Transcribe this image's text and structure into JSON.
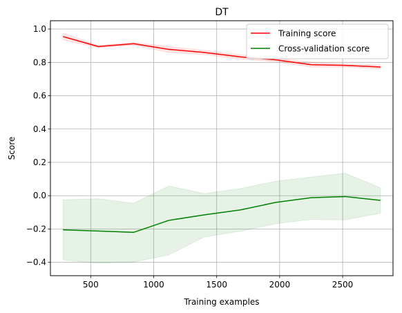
{
  "chart_data": {
    "type": "line",
    "title": "DT",
    "xlabel": "Training examples",
    "ylabel": "Score",
    "xlim": [
      180,
      2900
    ],
    "ylim": [
      -0.48,
      1.05
    ],
    "xticks": [
      500,
      1000,
      1500,
      2000,
      2500
    ],
    "yticks": [
      -0.4,
      -0.2,
      0.0,
      0.2,
      0.4,
      0.6,
      0.8,
      1.0
    ],
    "xtick_labels": [
      "500",
      "1000",
      "1500",
      "2000",
      "2500"
    ],
    "ytick_labels": [
      "−0.4",
      "−0.2",
      "0.0",
      "0.2",
      "0.4",
      "0.6",
      "0.8",
      "1.0"
    ],
    "grid": true,
    "legend_position": "top-right",
    "x": [
      280,
      560,
      840,
      1120,
      1400,
      1690,
      1970,
      2250,
      2520,
      2800
    ],
    "series": [
      {
        "name": "Training score",
        "color": "#ff0000",
        "band_color": "#ff0000",
        "values": [
          0.955,
          0.895,
          0.912,
          0.878,
          0.86,
          0.833,
          0.815,
          0.786,
          0.782,
          0.772
        ],
        "upper": [
          0.975,
          0.902,
          0.92,
          0.895,
          0.873,
          0.845,
          0.825,
          0.8,
          0.79,
          0.785
        ],
        "lower": [
          0.935,
          0.888,
          0.904,
          0.86,
          0.847,
          0.82,
          0.805,
          0.772,
          0.772,
          0.76
        ]
      },
      {
        "name": "Cross-validation score",
        "color": "#008000",
        "band_color": "#008000",
        "values": [
          -0.205,
          -0.212,
          -0.22,
          -0.148,
          -0.115,
          -0.085,
          -0.04,
          -0.012,
          -0.005,
          -0.028
        ],
        "upper": [
          -0.025,
          -0.018,
          -0.045,
          0.058,
          0.013,
          0.043,
          0.087,
          0.112,
          0.135,
          0.048
        ],
        "lower": [
          -0.385,
          -0.405,
          -0.398,
          -0.355,
          -0.248,
          -0.213,
          -0.168,
          -0.142,
          -0.145,
          -0.105
        ]
      }
    ]
  }
}
